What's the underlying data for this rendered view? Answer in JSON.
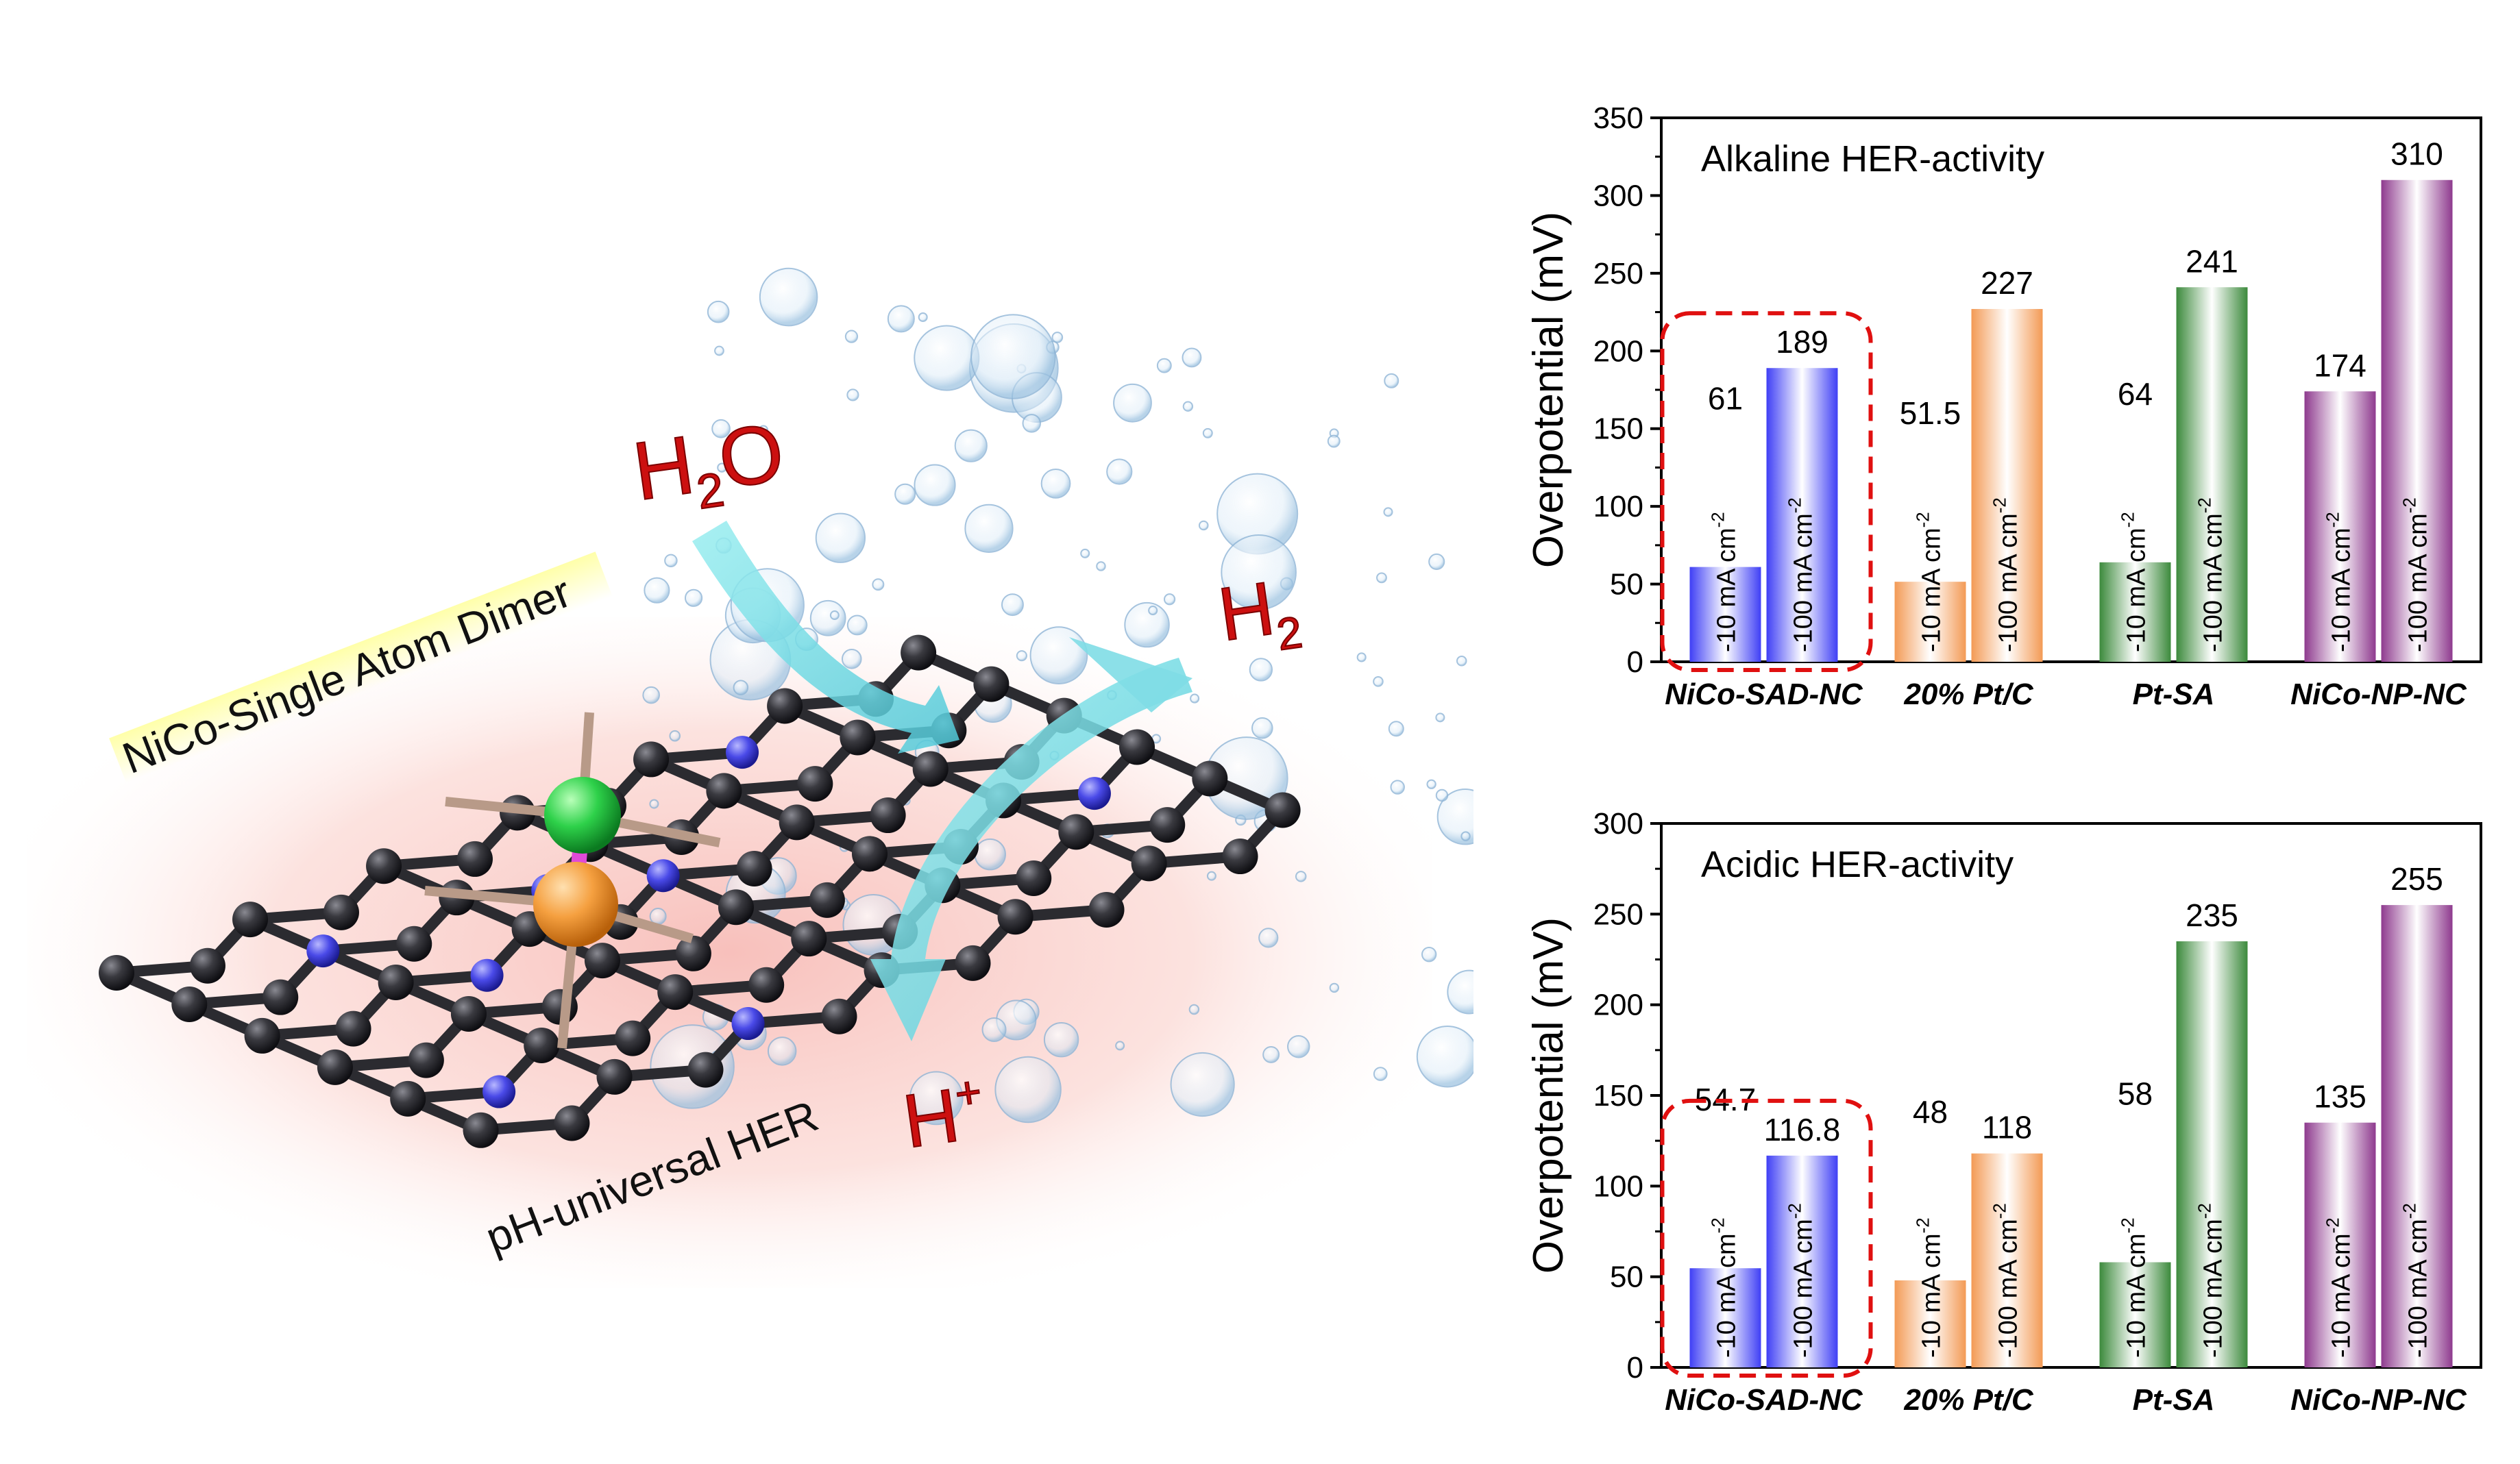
{
  "illustration": {
    "label_dimer": "NiCo-Single Atom Dimer",
    "label_her": "pH-universal HER",
    "mol_h2o": {
      "main": "H",
      "sub": "2",
      "tail": "O"
    },
    "mol_h2": {
      "main": "H",
      "sub": "2"
    },
    "mol_hplus": {
      "main": "H",
      "sup": "+"
    }
  },
  "chart_data": [
    {
      "type": "bar",
      "title": "Alkaline HER-activity",
      "ylabel": "Overpotential (mV)",
      "ylim": [
        0,
        350
      ],
      "yticks": [
        "0",
        "50",
        "100",
        "150",
        "200",
        "250",
        "300",
        "350"
      ],
      "categories": [
        "NiCo-SAD-NC",
        "20% Pt/C",
        "Pt-SA",
        "NiCo-NP-NC"
      ],
      "series": [
        {
          "bar_label": "-10 mA cm",
          "bar_label_sup": "-2",
          "values": [
            61,
            51.5,
            64,
            174
          ]
        },
        {
          "bar_label": "-100 mA cm",
          "bar_label_sup": "-2",
          "values": [
            189,
            227,
            241,
            310
          ]
        }
      ],
      "value_labels": [
        [
          "61",
          "51.5",
          "64",
          "174"
        ],
        [
          "189",
          "227",
          "241",
          "310"
        ]
      ],
      "colors": [
        "#3f3ff5",
        "#f39a55",
        "#3c8a3c",
        "#8e3a8e"
      ],
      "highlight_category": 0,
      "grid": false
    },
    {
      "type": "bar",
      "title": "Acidic HER-activity",
      "ylabel": "Overpotential (mV)",
      "ylim": [
        0,
        300
      ],
      "yticks": [
        "0",
        "50",
        "100",
        "150",
        "200",
        "250",
        "300"
      ],
      "categories": [
        "NiCo-SAD-NC",
        "20% Pt/C",
        "Pt-SA",
        "NiCo-NP-NC"
      ],
      "series": [
        {
          "bar_label": "-10 mA cm",
          "bar_label_sup": "-2",
          "values": [
            54.7,
            48,
            58,
            135
          ]
        },
        {
          "bar_label": "-100 mA cm",
          "bar_label_sup": "-2",
          "values": [
            116.8,
            118,
            235,
            255
          ]
        }
      ],
      "value_labels": [
        [
          "54.7",
          "48",
          "58",
          "135"
        ],
        [
          "116.8",
          "118",
          "235",
          "255"
        ]
      ],
      "colors": [
        "#3f3ff5",
        "#f39a55",
        "#3c8a3c",
        "#8e3a8e"
      ],
      "highlight_category": 0,
      "grid": false
    }
  ]
}
